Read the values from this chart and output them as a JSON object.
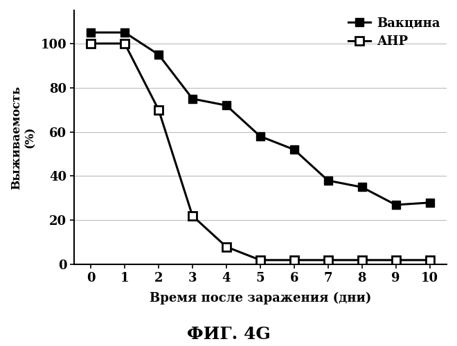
{
  "vaccine_x": [
    0,
    1,
    2,
    3,
    4,
    5,
    6,
    7,
    8,
    9,
    10
  ],
  "vaccine_y": [
    105,
    105,
    95,
    75,
    72,
    58,
    52,
    38,
    35,
    27,
    28
  ],
  "anp_x": [
    0,
    1,
    2,
    3,
    4,
    5,
    6,
    7,
    8,
    9,
    10
  ],
  "anp_y": [
    100,
    100,
    70,
    22,
    8,
    2,
    2,
    2,
    2,
    2,
    2
  ],
  "xlabel": "Время после заражения (дни)",
  "ylabel_line1": "Выживаемость",
  "ylabel_line2": "(%)",
  "title": "ФИГ. 4G",
  "legend_vaccine": "Вакцина",
  "legend_anp": "АНР",
  "xlim": [
    -0.5,
    10.5
  ],
  "ylim": [
    0,
    115
  ],
  "xticks": [
    0,
    1,
    2,
    3,
    4,
    5,
    6,
    7,
    8,
    9,
    10
  ],
  "yticks": [
    0,
    20,
    40,
    60,
    80,
    100
  ],
  "grid_color": "#bbbbbb",
  "line_color": "#000000",
  "bg_color": "#ffffff"
}
